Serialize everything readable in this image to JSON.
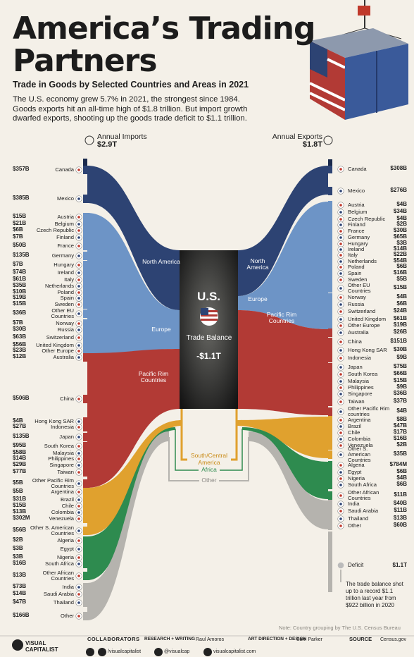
{
  "header": {
    "title": "America’s Trading Partners",
    "subtitle": "Trade in Goods by Selected Countries and Areas in 2021",
    "description": "The U.S. economy grew 5.7% in 2021, the strongest since 1984. Goods exports hit an all-time high of $1.8 trillion. But import growth dwarfed exports, shooting up the goods trade deficit to $1.1 trillion."
  },
  "imports": {
    "label": "Annual Imports",
    "total": "$2.9T",
    "items": [
      {
        "country": "Canada",
        "value": "$357B"
      },
      {
        "country": "Mexico",
        "value": "$385B"
      },
      {
        "country": "Austria",
        "value": "$15B"
      },
      {
        "country": "Belgium",
        "value": "$21B"
      },
      {
        "country": "Czech Republic",
        "value": "$6B"
      },
      {
        "country": "Finland",
        "value": "$7B"
      },
      {
        "country": "France",
        "value": "$50B"
      },
      {
        "country": "Germany",
        "value": "$135B"
      },
      {
        "country": "Hungary",
        "value": "$7B"
      },
      {
        "country": "Ireland",
        "value": "$74B"
      },
      {
        "country": "Italy",
        "value": "$61B"
      },
      {
        "country": "Netherlands",
        "value": "$35B"
      },
      {
        "country": "Poland",
        "value": "$10B"
      },
      {
        "country": "Spain",
        "value": "$19B"
      },
      {
        "country": "Sweden",
        "value": "$15B"
      },
      {
        "country": "Other EU Countries",
        "value": "$36B"
      },
      {
        "country": "Norway",
        "value": "$7B"
      },
      {
        "country": "Russia",
        "value": "$30B"
      },
      {
        "country": "Switzerland",
        "value": "$63B"
      },
      {
        "country": "United Kingdom",
        "value": "$56B"
      },
      {
        "country": "Other Europe",
        "value": "$23B"
      },
      {
        "country": "Australia",
        "value": "$12B"
      },
      {
        "country": "China",
        "value": "$506B"
      },
      {
        "country": "Hong Kong SAR",
        "value": "$4B"
      },
      {
        "country": "Indonesia",
        "value": "$27B"
      },
      {
        "country": "Japan",
        "value": "$135B"
      },
      {
        "country": "South Korea",
        "value": "$95B"
      },
      {
        "country": "Malaysia",
        "value": "$58B"
      },
      {
        "country": "Philippines",
        "value": "$14B"
      },
      {
        "country": "Singapore",
        "value": "$29B"
      },
      {
        "country": "Taiwan",
        "value": "$77B"
      },
      {
        "country": "Other Pacific Rim Countries",
        "value": "$5B"
      },
      {
        "country": "Argentina",
        "value": "$5B"
      },
      {
        "country": "Brazil",
        "value": "$31B"
      },
      {
        "country": "Chile",
        "value": "$15B"
      },
      {
        "country": "Colombia",
        "value": "$13B"
      },
      {
        "country": "Venezuela",
        "value": "$302M"
      },
      {
        "country": "Other S. American Countries",
        "value": "$56B"
      },
      {
        "country": "Algeria",
        "value": "$2B"
      },
      {
        "country": "Egypt",
        "value": "$3B"
      },
      {
        "country": "Nigeria",
        "value": "$3B"
      },
      {
        "country": "South Africa",
        "value": "$16B"
      },
      {
        "country": "Other African Countries",
        "value": "$13B"
      },
      {
        "country": "India",
        "value": "$73B"
      },
      {
        "country": "Saudi Arabia",
        "value": "$14B"
      },
      {
        "country": "Thailand",
        "value": "$47B"
      },
      {
        "country": "Other",
        "value": "$166B"
      }
    ]
  },
  "exports": {
    "label": "Annual Exports",
    "total": "$1.8T",
    "items": [
      {
        "country": "Canada",
        "value": "$308B"
      },
      {
        "country": "Mexico",
        "value": "$276B"
      },
      {
        "country": "Austria",
        "value": "$4B"
      },
      {
        "country": "Belgium",
        "value": "$34B"
      },
      {
        "country": "Czech Republic",
        "value": "$4B"
      },
      {
        "country": "Finland",
        "value": "$2B"
      },
      {
        "country": "France",
        "value": "$30B"
      },
      {
        "country": "Germany",
        "value": "$65B"
      },
      {
        "country": "Hungary",
        "value": "$3B"
      },
      {
        "country": "Ireland",
        "value": "$14B"
      },
      {
        "country": "Italy",
        "value": "$22B"
      },
      {
        "country": "Netherlands",
        "value": "$54B"
      },
      {
        "country": "Poland",
        "value": "$6B"
      },
      {
        "country": "Spain",
        "value": "$16B"
      },
      {
        "country": "Sweden",
        "value": "$5B"
      },
      {
        "country": "Other EU Countries",
        "value": "$15B"
      },
      {
        "country": "Norway",
        "value": "$4B"
      },
      {
        "country": "Russia",
        "value": "$6B"
      },
      {
        "country": "Switzerland",
        "value": "$24B"
      },
      {
        "country": "United Kingdom",
        "value": "$61B"
      },
      {
        "country": "Other Europe",
        "value": "$19B"
      },
      {
        "country": "Australia",
        "value": "$26B"
      },
      {
        "country": "China",
        "value": "$151B"
      },
      {
        "country": "Hong Kong SAR",
        "value": "$30B"
      },
      {
        "country": "Indonesia",
        "value": "$9B"
      },
      {
        "country": "Japan",
        "value": "$75B"
      },
      {
        "country": "South Korea",
        "value": "$66B"
      },
      {
        "country": "Malaysia",
        "value": "$15B"
      },
      {
        "country": "Philippines",
        "value": "$9B"
      },
      {
        "country": "Singapore",
        "value": "$36B"
      },
      {
        "country": "Taiwan",
        "value": "$37B"
      },
      {
        "country": "Other Pacific Rim countries",
        "value": "$4B"
      },
      {
        "country": "Argentina",
        "value": "$8B"
      },
      {
        "country": "Brazil",
        "value": "$47B"
      },
      {
        "country": "Chile",
        "value": "$17B"
      },
      {
        "country": "Colombia",
        "value": "$16B"
      },
      {
        "country": "Venezuela",
        "value": "$2B"
      },
      {
        "country": "Other S. American Countries",
        "value": "$35B"
      },
      {
        "country": "Algeria",
        "value": "$784M"
      },
      {
        "country": "Egypt",
        "value": "$6B"
      },
      {
        "country": "Nigeria",
        "value": "$4B"
      },
      {
        "country": "South Africa",
        "value": "$6B"
      },
      {
        "country": "Other African Countries",
        "value": "$11B"
      },
      {
        "country": "India",
        "value": "$40B"
      },
      {
        "country": "Saudi Arabia",
        "value": "$11B"
      },
      {
        "country": "Thailand",
        "value": "$13B"
      },
      {
        "country": "Other",
        "value": "$60B"
      }
    ]
  },
  "regions": [
    "North America",
    "Europe",
    "Pacific Rim Countries",
    "South/Central America",
    "Africa",
    "Other"
  ],
  "center": {
    "country": "U.S.",
    "label": "Trade Balance",
    "value": "-$1.1T"
  },
  "deficit": {
    "label": "Deficit",
    "value": "$1.1T",
    "note": "The trade balance shot up to a record $1.1 trillion last year from $922 billion in 2020"
  },
  "note": "Note: Country grouping by The U.S. Census Bureau",
  "footer": {
    "logo": "VISUAL CAPITALIST",
    "collaborators": "COLLABORATORS",
    "research_label": "RESEARCH + WRITING",
    "research": "Raul Amoros",
    "design_label": "ART DIRECTION + DESIGN",
    "design": "Sam Parker",
    "source_label": "SOURCE",
    "source": "Census.gov",
    "social": [
      "/visualcapitalist",
      "@visualcap",
      "visualcapitalist.com"
    ]
  }
}
